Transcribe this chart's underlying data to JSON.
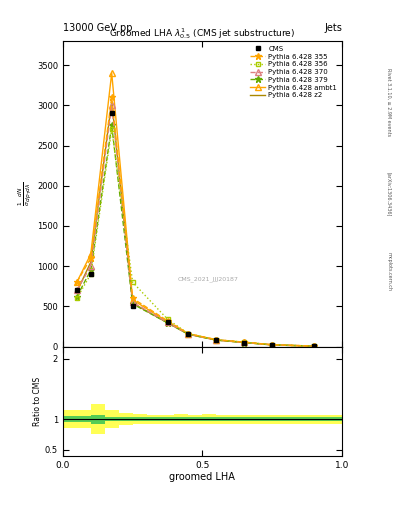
{
  "title_top": "13000 GeV pp",
  "title_right": "Jets",
  "plot_title": "Groomed LHA $\\lambda^{1}_{0.5}$ (CMS jet substructure)",
  "xlabel": "groomed LHA",
  "ylabel_main": "$\\frac{1}{\\sigma}\\frac{dN}{d\\lambda}$",
  "ylabel_ratio": "Ratio to CMS",
  "watermark": "CMS_2021_JJJ20187",
  "rivet_label": "Rivet 3.1.10, ≥ 2.9M events",
  "arxiv_label": "[arXiv:1306.3436]",
  "mcplots_label": "mcplots.cern.ch",
  "cms_x": [
    0.05,
    0.1,
    0.175,
    0.25,
    0.375,
    0.45,
    0.55,
    0.65,
    0.75,
    0.9
  ],
  "cms_y": [
    700,
    900,
    2900,
    500,
    300,
    150,
    80,
    50,
    20,
    5
  ],
  "line_355_x": [
    0.05,
    0.1,
    0.175,
    0.25,
    0.375,
    0.45,
    0.55,
    0.65,
    0.75,
    0.9
  ],
  "line_355_y": [
    800,
    1100,
    3100,
    600,
    320,
    160,
    85,
    55,
    22,
    6
  ],
  "line_356_x": [
    0.05,
    0.1,
    0.175,
    0.25,
    0.375,
    0.45,
    0.55,
    0.65,
    0.75,
    0.9
  ],
  "line_356_y": [
    600,
    900,
    2700,
    800,
    340,
    160,
    85,
    55,
    22,
    6
  ],
  "line_370_x": [
    0.05,
    0.1,
    0.175,
    0.25,
    0.375,
    0.45,
    0.55,
    0.65,
    0.75,
    0.9
  ],
  "line_370_y": [
    700,
    1000,
    3000,
    550,
    300,
    155,
    82,
    52,
    21,
    5.5
  ],
  "line_379_x": [
    0.05,
    0.1,
    0.175,
    0.25,
    0.375,
    0.45,
    0.55,
    0.65,
    0.75,
    0.9
  ],
  "line_379_y": [
    620,
    950,
    2750,
    530,
    295,
    152,
    80,
    50,
    20,
    5
  ],
  "line_ambt1_x": [
    0.05,
    0.1,
    0.175,
    0.25,
    0.375,
    0.45,
    0.55,
    0.65,
    0.75,
    0.9
  ],
  "line_ambt1_y": [
    800,
    1150,
    3400,
    580,
    310,
    158,
    83,
    53,
    21,
    5.5
  ],
  "line_z2_x": [
    0.05,
    0.1,
    0.175,
    0.25,
    0.375,
    0.45,
    0.55,
    0.65,
    0.75,
    0.9
  ],
  "line_z2_y": [
    680,
    1050,
    3050,
    540,
    295,
    152,
    80,
    50,
    20,
    5
  ],
  "color_355": "#FFA500",
  "color_356": "#AACC00",
  "color_370": "#DD8080",
  "color_379": "#66AA00",
  "color_ambt1": "#FFA500",
  "color_z2": "#AA8800",
  "ratio_bins": [
    0.0,
    0.05,
    0.1,
    0.15,
    0.2,
    0.25,
    0.3,
    0.35,
    0.4,
    0.45,
    0.5,
    0.55,
    0.6,
    0.65,
    0.7,
    0.75,
    0.8,
    0.85,
    0.9,
    0.95,
    1.0
  ],
  "ratio_yellow_low": [
    0.85,
    0.85,
    0.75,
    0.85,
    0.9,
    0.92,
    0.93,
    0.93,
    0.92,
    0.93,
    0.92,
    0.93,
    0.93,
    0.93,
    0.93,
    0.93,
    0.93,
    0.93,
    0.93,
    0.93
  ],
  "ratio_yellow_high": [
    1.15,
    1.15,
    1.25,
    1.15,
    1.1,
    1.08,
    1.07,
    1.07,
    1.08,
    1.07,
    1.08,
    1.07,
    1.07,
    1.07,
    1.07,
    1.07,
    1.07,
    1.07,
    1.07,
    1.07
  ],
  "ratio_green_low": [
    0.95,
    0.95,
    0.93,
    0.97,
    0.97,
    0.97,
    0.97,
    0.97,
    0.97,
    0.97,
    0.97,
    0.97,
    0.97,
    0.97,
    0.97,
    0.97,
    0.97,
    0.97,
    0.97,
    0.97
  ],
  "ratio_green_high": [
    1.05,
    1.05,
    1.07,
    1.03,
    1.03,
    1.03,
    1.03,
    1.03,
    1.03,
    1.03,
    1.03,
    1.03,
    1.03,
    1.03,
    1.03,
    1.03,
    1.03,
    1.03,
    1.03,
    1.03
  ],
  "ylim_main": [
    0,
    3800
  ],
  "ylim_ratio": [
    0.4,
    2.2
  ],
  "yticks_main": [
    0,
    500,
    1000,
    1500,
    2000,
    2500,
    3000,
    3500
  ],
  "yticks_ratio": [
    0.5,
    1.0,
    2.0
  ],
  "xlim": [
    0,
    1
  ]
}
